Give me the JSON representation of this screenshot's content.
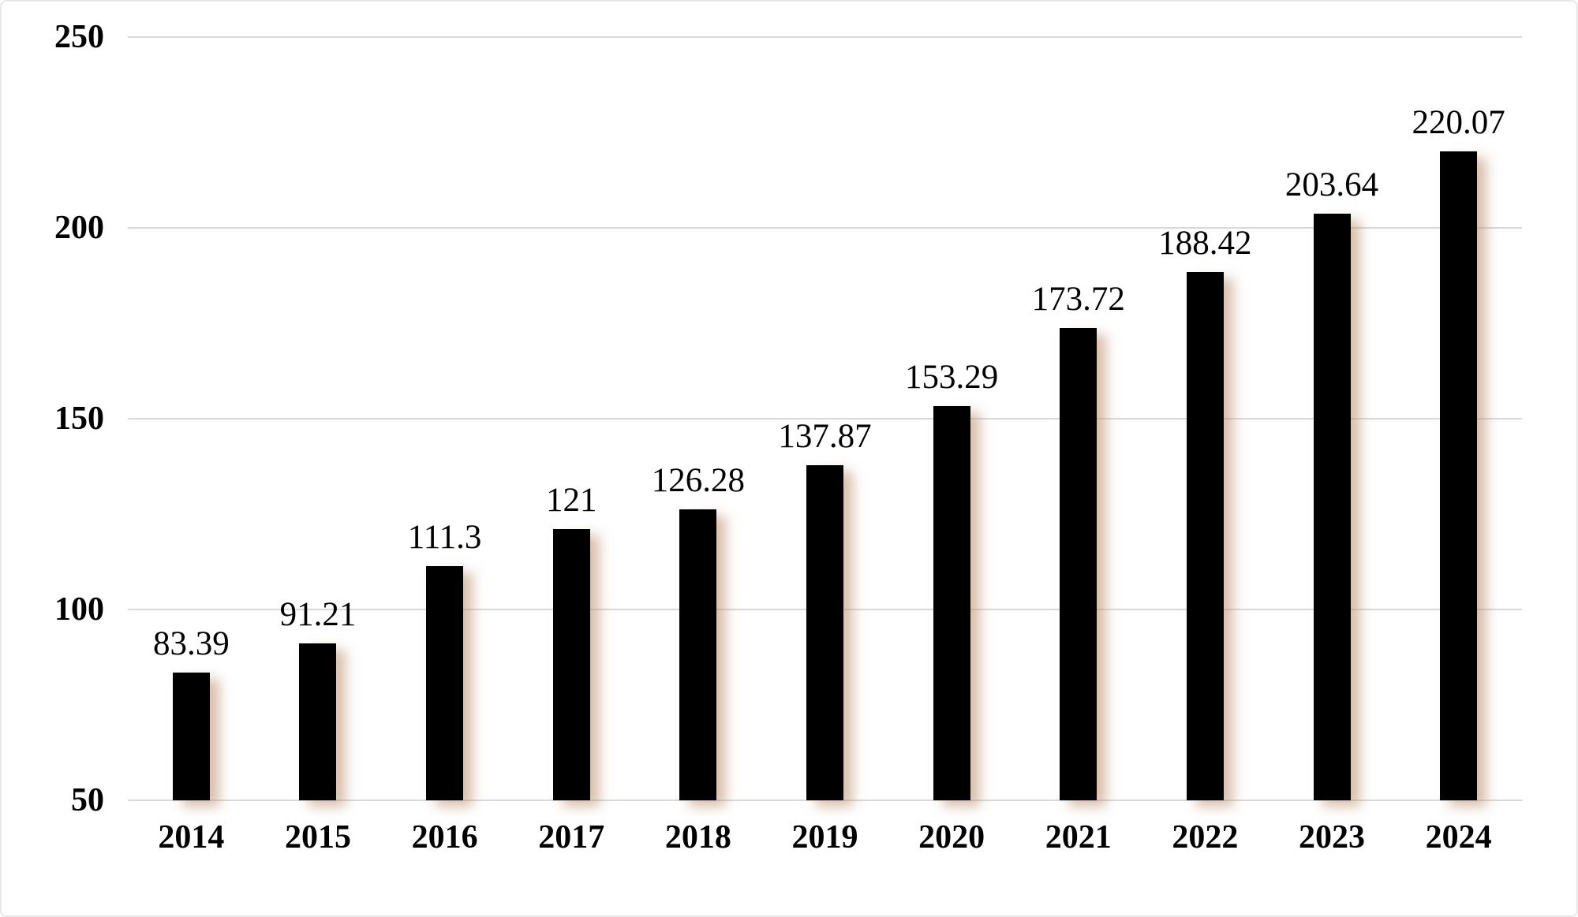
{
  "chart_data": {
    "type": "bar",
    "title": "",
    "xlabel": "",
    "ylabel": "",
    "categories": [
      "2014",
      "2015",
      "2016",
      "2017",
      "2018",
      "2019",
      "2020",
      "2021",
      "2022",
      "2023",
      "2024"
    ],
    "values": [
      83.39,
      91.21,
      111.3,
      121,
      126.28,
      137.87,
      153.29,
      173.72,
      188.42,
      203.64,
      220.07
    ],
    "value_labels": [
      "83.39",
      "91.21",
      "111.3",
      "121",
      "126.28",
      "137.87",
      "153.29",
      "173.72",
      "188.42",
      "203.64",
      "220.07"
    ],
    "y_ticks": [
      "250",
      "200",
      "150",
      "100",
      "50"
    ],
    "y_tick_values": [
      250,
      200,
      150,
      100,
      50
    ],
    "ylim": [
      50,
      250
    ],
    "grid": true,
    "legend": "none",
    "colors": {
      "bar": "#000000",
      "bar_shadow": "rgba(182,129,92,0.5)",
      "gridline": "#d9d9d9",
      "text": "#000000",
      "background": "#ffffff",
      "frame_border": "#e7e7e7"
    }
  }
}
